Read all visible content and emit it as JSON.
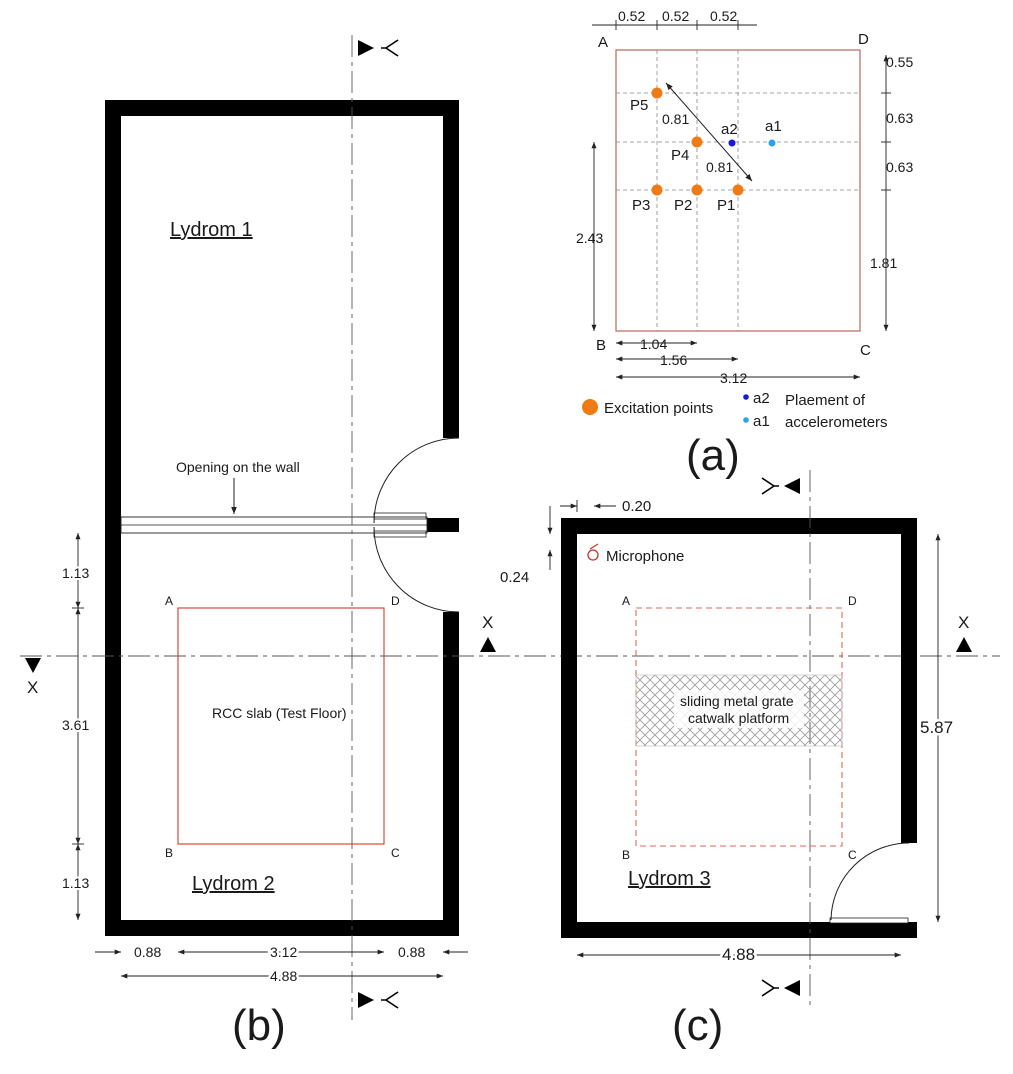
{
  "panel_a": {
    "label": "(a)",
    "corners": {
      "A": "A",
      "B": "B",
      "C": "C",
      "D": "D"
    },
    "top_dims": [
      "0.52",
      "0.52",
      "0.52"
    ],
    "right_dims": [
      "0.55",
      "0.63",
      "0.63",
      "1.81"
    ],
    "left_dim": "2.43",
    "bottom_dims": [
      "1.04",
      "1.56",
      "3.12"
    ],
    "diag_dims": [
      "0.81",
      "0.81"
    ],
    "points": [
      "P1",
      "P2",
      "P3",
      "P4",
      "P5"
    ],
    "accels": [
      "a1",
      "a2"
    ],
    "legend": {
      "excitation": "Excitation points",
      "a2": "a2",
      "a1": "a1",
      "placement_1": "Plaement of",
      "placement_2": "accelerometers"
    },
    "colors": {
      "excitation": "#f07a13",
      "a1": "#2aa3e8",
      "a2": "#1a1ad6",
      "slab": "#b5685a"
    }
  },
  "panel_b": {
    "label": "(b)",
    "room1": "Lydrom 1",
    "room2": "Lydrom 2",
    "opening": "Opening on the wall",
    "slab": "RCC slab (Test Floor)",
    "corners": {
      "A": "A",
      "B": "B",
      "C": "C",
      "D": "D"
    },
    "left_dims": [
      "1.13",
      "3.61",
      "1.13"
    ],
    "bottom_dims": [
      "0.88",
      "3.12",
      "0.88"
    ],
    "total_width": "4.88",
    "section_mark": "X"
  },
  "panel_c": {
    "label": "(c)",
    "room": "Lydrom 3",
    "microphone": "Microphone",
    "dims": {
      "mic_x": "0.20",
      "mic_y": "0.24",
      "height": "5.87",
      "width": "4.88"
    },
    "platform_1": "sliding metal grate",
    "platform_2": "catwalk platform",
    "corners": {
      "A": "A",
      "B": "B",
      "C": "C",
      "D": "D"
    },
    "section_mark": "X"
  }
}
